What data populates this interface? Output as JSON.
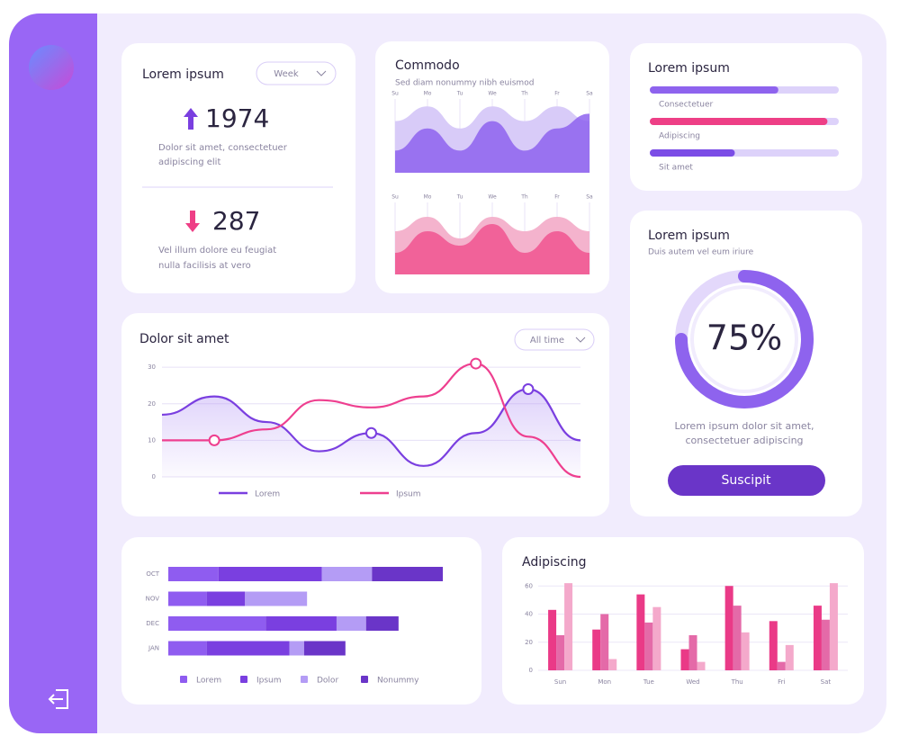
{
  "stats_card": {
    "title": "Lorem ipsum",
    "filter": "Week",
    "items": [
      {
        "value": 1974,
        "text": [
          "Dolor sit amet, consectetuer",
          "adipiscing elit"
        ]
      },
      {
        "value": 287,
        "text": [
          "Vel illum dolore eu feugiat",
          "nulla facilisis at vero"
        ]
      }
    ]
  },
  "commodo_card": {
    "title": "Commodo",
    "subtitle": "Sed diam nonummy nibh euismod",
    "charts": [
      {
        "type": "area",
        "categories": [
          "Su",
          "Mo",
          "Tu",
          "We",
          "Th",
          "Fr",
          "Sa"
        ],
        "ylim": [
          0,
          10
        ],
        "series": [
          {
            "color": "#d8cbf8",
            "values": [
              7,
              9,
              6,
              9,
              7,
              9,
              7
            ]
          },
          {
            "color": "#8e63ee",
            "values": [
              3,
              6,
              3,
              7,
              3,
              6,
              8
            ]
          }
        ]
      },
      {
        "type": "area",
        "categories": [
          "Su",
          "Mo",
          "Tu",
          "We",
          "Th",
          "Fr",
          "Sa"
        ],
        "ylim": [
          0,
          10
        ],
        "series": [
          {
            "color": "#f4b3cd",
            "values": [
              6,
              8,
              5,
              8,
              6,
              8,
              6
            ]
          },
          {
            "color": "#f0548f",
            "values": [
              3,
              6,
              4,
              7,
              3,
              6,
              3
            ]
          }
        ]
      }
    ]
  },
  "progress_card": {
    "title": "Lorem ipsum",
    "xlim": [
      0,
      100
    ],
    "items": [
      {
        "label": "Consectetuer",
        "value": 68,
        "color": "#8e63ee"
      },
      {
        "label": "Adipiscing",
        "value": 94,
        "color": "#ee3f86"
      },
      {
        "label": "Sit amet",
        "value": 45,
        "color": "#7b4de6"
      }
    ]
  },
  "donut_card": {
    "title": "Lorem ipsum",
    "subtitle": "Duis autem vel eum iriure",
    "value": 75,
    "value_label": "75%",
    "text": [
      "Lorem ipsum dolor sit amet,",
      "consectetuer adipiscing"
    ],
    "button": "Suscipit"
  },
  "line_card": {
    "title": "Dolor sit amet",
    "filter": "All time",
    "chart": {
      "type": "line",
      "ylim": [
        0,
        32
      ],
      "yticks": [
        0,
        10,
        20,
        30
      ],
      "grid": true,
      "series": [
        {
          "name": "Lorem",
          "color": "#7a3fe0",
          "values": [
            17,
            22,
            15,
            7,
            12,
            3,
            12,
            24,
            10
          ]
        },
        {
          "name": "Ipsum",
          "color": "#ee3f8f",
          "values": [
            10,
            10,
            13,
            21,
            19,
            22,
            31,
            11,
            0
          ]
        }
      ]
    }
  },
  "hbar_card": {
    "chart": {
      "type": "stacked-bar",
      "categories": [
        "OCT",
        "NOV",
        "DEC",
        "JAN"
      ],
      "xlim": [
        0,
        100
      ],
      "series": [
        {
          "name": "Lorem",
          "color": "#8f5cf0",
          "values": [
            17,
            13,
            33,
            13
          ]
        },
        {
          "name": "Ipsum",
          "color": "#7a3fe0",
          "values": [
            35,
            13,
            24,
            28
          ]
        },
        {
          "name": "Dolor",
          "color": "#b49cf5",
          "values": [
            17,
            21,
            10,
            5
          ]
        },
        {
          "name": "Nonummy",
          "color": "#6a35c8",
          "values": [
            24,
            0,
            11,
            14
          ]
        }
      ]
    }
  },
  "gbar_card": {
    "title": "Adipiscing",
    "chart": {
      "type": "bar",
      "categories": [
        "Sun",
        "Mon",
        "Tue",
        "Wed",
        "Thu",
        "Fri",
        "Sat"
      ],
      "ylim": [
        0,
        64
      ],
      "yticks": [
        0,
        20,
        40,
        60
      ],
      "grid": true,
      "series": [
        {
          "color": "#ea3a87",
          "values": [
            43,
            29,
            54,
            15,
            60,
            35,
            46
          ]
        },
        {
          "color": "#e46aa8",
          "values": [
            25,
            40,
            34,
            25,
            46,
            6,
            36
          ]
        },
        {
          "color": "#f4a9cb",
          "values": [
            62,
            8,
            45,
            6,
            27,
            18,
            62
          ]
        }
      ]
    }
  }
}
